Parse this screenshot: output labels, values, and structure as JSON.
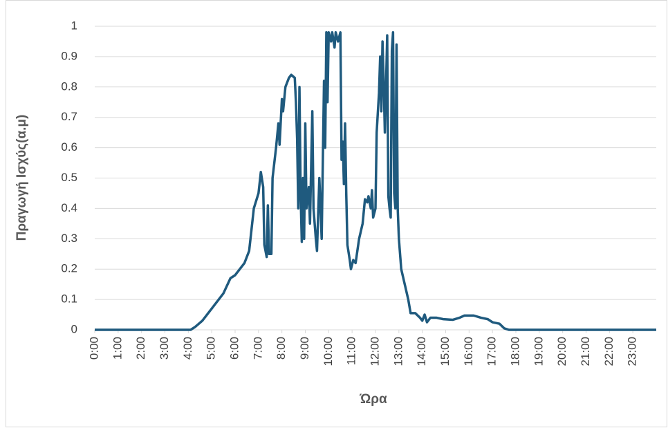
{
  "chart_data": {
    "type": "line",
    "x_label": "Ώρα",
    "y_label": "Πραγωγή Ισχύς(α.μ)",
    "x": [
      0,
      4.1,
      4.3,
      4.6,
      5,
      5.5,
      5.8,
      6,
      6.2,
      6.4,
      6.6,
      6.8,
      7,
      7.1,
      7.2,
      7.25,
      7.35,
      7.4,
      7.45,
      7.55,
      7.6,
      7.75,
      7.85,
      7.9,
      8,
      8.05,
      8.15,
      8.3,
      8.4,
      8.55,
      8.6,
      8.65,
      8.7,
      8.75,
      8.8,
      8.85,
      8.9,
      8.95,
      9.0,
      9.05,
      9.15,
      9.2,
      9.3,
      9.35,
      9.45,
      9.5,
      9.6,
      9.7,
      9.8,
      9.85,
      9.9,
      9.95,
      10.0,
      10.1,
      10.15,
      10.25,
      10.3,
      10.4,
      10.5,
      10.55,
      10.6,
      10.65,
      10.7,
      10.75,
      10.8,
      10.9,
      10.95,
      11.05,
      11.15,
      11.3,
      11.45,
      11.55,
      11.65,
      11.7,
      11.8,
      11.85,
      11.9,
      12.0,
      12.05,
      12.15,
      12.2,
      12.25,
      12.3,
      12.35,
      12.4,
      12.45,
      12.5,
      12.55,
      12.6,
      12.65,
      12.7,
      12.75,
      12.8,
      12.85,
      12.9,
      12.95,
      13.0,
      13.1,
      13.25,
      13.4,
      13.5,
      13.7,
      13.9,
      14.0,
      14.1,
      14.2,
      14.35,
      14.6,
      14.9,
      15.3,
      15.6,
      15.8,
      16.2,
      16.5,
      16.8,
      17.0,
      17.3,
      17.5,
      17.7,
      24
    ],
    "series": [
      {
        "name": "Πραγωγή Ισχύς",
        "color": "#1f5a7e",
        "values": [
          0,
          0,
          0.01,
          0.03,
          0.07,
          0.12,
          0.17,
          0.18,
          0.2,
          0.22,
          0.26,
          0.4,
          0.45,
          0.52,
          0.47,
          0.28,
          0.24,
          0.41,
          0.25,
          0.25,
          0.5,
          0.6,
          0.68,
          0.61,
          0.76,
          0.72,
          0.8,
          0.83,
          0.84,
          0.83,
          0.75,
          0.63,
          0.4,
          0.8,
          0.45,
          0.29,
          0.5,
          0.3,
          0.68,
          0.4,
          0.47,
          0.35,
          0.72,
          0.4,
          0.3,
          0.26,
          0.5,
          0.3,
          0.82,
          0.6,
          0.98,
          0.75,
          0.98,
          0.95,
          0.98,
          0.93,
          0.98,
          0.95,
          0.98,
          0.56,
          0.62,
          0.48,
          0.68,
          0.45,
          0.28,
          0.23,
          0.2,
          0.23,
          0.22,
          0.3,
          0.35,
          0.43,
          0.42,
          0.44,
          0.4,
          0.46,
          0.37,
          0.4,
          0.65,
          0.78,
          0.9,
          0.72,
          0.95,
          0.82,
          0.65,
          0.8,
          0.97,
          0.44,
          0.4,
          0.37,
          0.92,
          0.98,
          0.45,
          0.4,
          0.94,
          0.4,
          0.3,
          0.2,
          0.15,
          0.1,
          0.055,
          0.055,
          0.04,
          0.03,
          0.05,
          0.025,
          0.04,
          0.04,
          0.035,
          0.033,
          0.04,
          0.047,
          0.047,
          0.04,
          0.035,
          0.025,
          0.02,
          0.005,
          0,
          0
        ]
      }
    ],
    "xlim": [
      0,
      24
    ],
    "xticks": [
      {
        "value": 0,
        "label": "0:00"
      },
      {
        "value": 1,
        "label": "1:00"
      },
      {
        "value": 2,
        "label": "2:00"
      },
      {
        "value": 3,
        "label": "3:00"
      },
      {
        "value": 4,
        "label": "4:00"
      },
      {
        "value": 5,
        "label": "5:00"
      },
      {
        "value": 6,
        "label": "6:00"
      },
      {
        "value": 7,
        "label": "7:00"
      },
      {
        "value": 8,
        "label": "8:00"
      },
      {
        "value": 9,
        "label": "9:00"
      },
      {
        "value": 10,
        "label": "10:00"
      },
      {
        "value": 11,
        "label": "11:00"
      },
      {
        "value": 12,
        "label": "12:00"
      },
      {
        "value": 13,
        "label": "13:00"
      },
      {
        "value": 14,
        "label": "14:00"
      },
      {
        "value": 15,
        "label": "15:00"
      },
      {
        "value": 16,
        "label": "16:00"
      },
      {
        "value": 17,
        "label": "17:00"
      },
      {
        "value": 18,
        "label": "18:00"
      },
      {
        "value": 19,
        "label": "19:00"
      },
      {
        "value": 20,
        "label": "20:00"
      },
      {
        "value": 21,
        "label": "21:00"
      },
      {
        "value": 22,
        "label": "22:00"
      },
      {
        "value": 23,
        "label": "23:00"
      }
    ],
    "ylim": [
      0,
      1
    ],
    "yticks": [
      0,
      0.1,
      0.2,
      0.3,
      0.4,
      0.5,
      0.6,
      0.7,
      0.8,
      0.9,
      1
    ],
    "grid": true
  }
}
